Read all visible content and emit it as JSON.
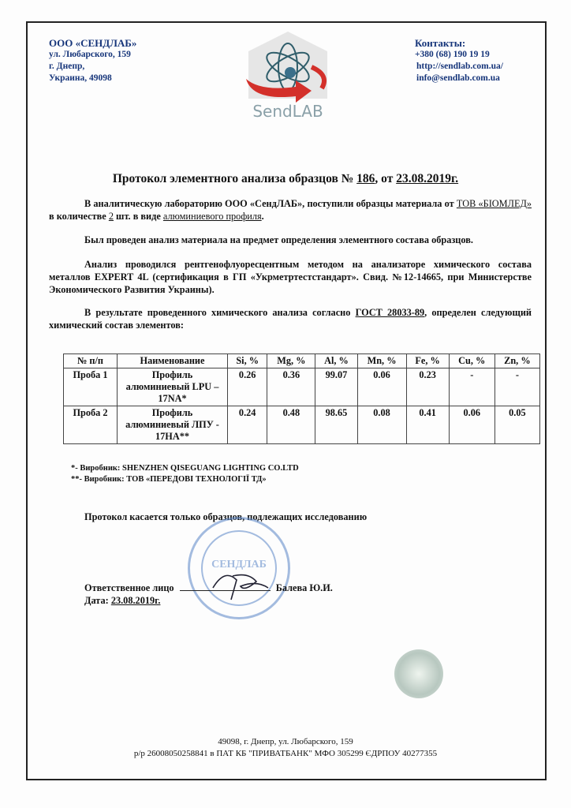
{
  "header": {
    "company": "ООО «СЕНДЛАБ»",
    "address": [
      "ул. Любарского, 159",
      "г. Днепр,",
      "Украина, 49098"
    ],
    "contacts_title": "Контакты:",
    "contacts": [
      "+380 (68) 190 19 19",
      "http://sendlab.com.ua/",
      "info@sendlab.com.ua"
    ],
    "logo_text": "SendLAB"
  },
  "title": {
    "prefix": "Протокол элементного анализа образцов № ",
    "number": "186",
    "mid": ", от ",
    "date": "23.08.2019г."
  },
  "paragraphs": {
    "p1": {
      "a": "В аналитическую лабораторию ООО «СендЛАБ», поступили образцы материала от ",
      "client": "ТОВ «БІОМЛЕД»",
      "b": " в количестве ",
      "qty": "2",
      "c": " шт. в виде ",
      "material": "алюминиевого профиля",
      "d": "."
    },
    "p2": "Был проведен анализ материала на предмет определения элементного состава образцов.",
    "p3": "Анализ проводился рентгенофлуоресцентным методом на анализаторе химического состава металлов EXPERT 4L (сертификация в ГП «Укрметртестстандарт». Свид. №12-14665, при Министерстве Экономического Развития Украины).",
    "p4": {
      "a": "В результате проведенного химического анализа согласно ",
      "gost": "ГОСТ 28033-89",
      "b": ", определен следующий химический состав элементов:"
    }
  },
  "table": {
    "headers": [
      "№ п/п",
      "Наименование",
      "Si, %",
      "Mg, %",
      "Al, %",
      "Mn, %",
      "Fe, %",
      "Cu, %",
      "Zn, %"
    ],
    "rows": [
      [
        "Проба 1",
        "Профиль алюминиевый LPU – 17NA*",
        "0.26",
        "0.36",
        "99.07",
        "0.06",
        "0.23",
        "-",
        "-"
      ],
      [
        "Проба 2",
        "Профиль алюминиевый ЛПУ - 17НА**",
        "0.24",
        "0.48",
        "98.65",
        "0.08",
        "0.41",
        "0.06",
        "0.05"
      ]
    ]
  },
  "notes": [
    "*- Виробник: SHENZHEN QISEGUANG LIGHTING CO.LTD",
    "**- Виробник: ТОВ «ПЕРЕДОВІ ТЕХНОЛОГІЇ ТД»"
  ],
  "disclaimer": "Протокол касается только образцов, подлежащих исследованию",
  "signature": {
    "label": "Ответственное лицо",
    "name": "Балева Ю.И.",
    "date_label": "Дата: ",
    "date": "23.08.2019г.",
    "stamp_text": "СЕНДЛАБ"
  },
  "footer": [
    "49098, г. Днепр, ул. Любарского, 159",
    "р/р 26008050258841 в ПАТ КБ \"ПРИВАТБАНК\" МФО  305299 ЄДРПОУ 40277355"
  ],
  "colors": {
    "header_blue": "#16357a",
    "stamp_blue": "#5a86c8",
    "logo_red": "#d3302a",
    "logo_teal": "#2f5d6a"
  }
}
